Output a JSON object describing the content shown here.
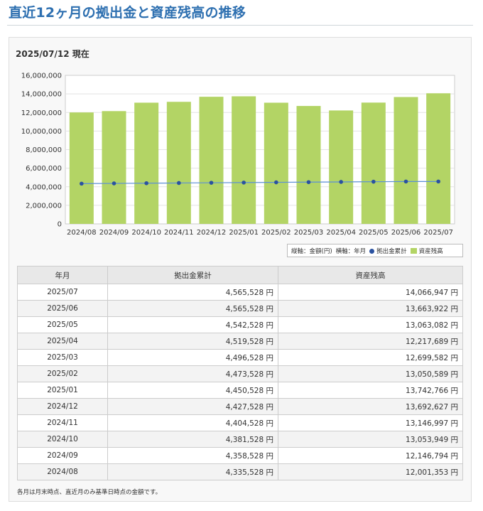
{
  "page": {
    "title": "直近12ヶ月の拠出金と資産残高の推移",
    "as_of": "2025/07/12 現在",
    "note": "各月は月末時点、直近月のみ基準日時点の金額です。"
  },
  "legend": {
    "y_axis": "縦軸：金額(円)",
    "x_axis": "横軸：年月",
    "line_series": "拠出金累計",
    "bar_series": "資産残高"
  },
  "colors": {
    "title": "#2d6fb0",
    "bar": "#b3d465",
    "line": "#5b8fd6",
    "marker": "#2a52a0"
  },
  "chart_data": {
    "type": "bar",
    "categories": [
      "2024/08",
      "2024/09",
      "2024/10",
      "2024/11",
      "2024/12",
      "2025/01",
      "2025/02",
      "2025/03",
      "2025/04",
      "2025/05",
      "2025/06",
      "2025/07"
    ],
    "y_ticks": [
      "0",
      "2,000,000",
      "4,000,000",
      "6,000,000",
      "8,000,000",
      "10,000,000",
      "12,000,000",
      "14,000,000",
      "16,000,000"
    ],
    "ylim": [
      0,
      16000000
    ],
    "grid": true,
    "legend_position": "bottom-right",
    "series": [
      {
        "name": "資産残高",
        "type": "bar",
        "values": [
          12001353,
          12146794,
          13053949,
          13146997,
          13692627,
          13742766,
          13050589,
          12699582,
          12217689,
          13063082,
          13663922,
          14066947
        ]
      },
      {
        "name": "拠出金累計",
        "type": "line",
        "values": [
          4335528,
          4358528,
          4381528,
          4404528,
          4427528,
          4450528,
          4473528,
          4496528,
          4519528,
          4542528,
          4565528,
          4565528
        ]
      }
    ]
  },
  "table": {
    "headers": [
      "年月",
      "拠出金累計",
      "資産残高"
    ],
    "rows": [
      [
        "2025/07",
        "4,565,528 円",
        "14,066,947 円"
      ],
      [
        "2025/06",
        "4,565,528 円",
        "13,663,922 円"
      ],
      [
        "2025/05",
        "4,542,528 円",
        "13,063,082 円"
      ],
      [
        "2025/04",
        "4,519,528 円",
        "12,217,689 円"
      ],
      [
        "2025/03",
        "4,496,528 円",
        "12,699,582 円"
      ],
      [
        "2025/02",
        "4,473,528 円",
        "13,050,589 円"
      ],
      [
        "2025/01",
        "4,450,528 円",
        "13,742,766 円"
      ],
      [
        "2024/12",
        "4,427,528 円",
        "13,692,627 円"
      ],
      [
        "2024/11",
        "4,404,528 円",
        "13,146,997 円"
      ],
      [
        "2024/10",
        "4,381,528 円",
        "13,053,949 円"
      ],
      [
        "2024/09",
        "4,358,528 円",
        "12,146,794 円"
      ],
      [
        "2024/08",
        "4,335,528 円",
        "12,001,353 円"
      ]
    ]
  }
}
